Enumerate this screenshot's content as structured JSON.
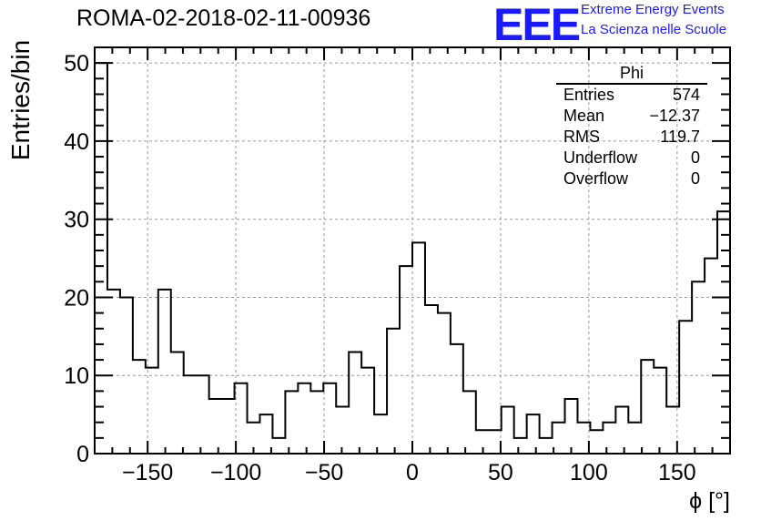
{
  "header": {
    "title": "ROMA-02-2018-02-11-00936",
    "logo_text": "EEE",
    "logo_line1": "Extreme Energy Events",
    "logo_line2": "La Scienza nelle Scuole"
  },
  "stats": {
    "title": "Phi",
    "rows": [
      {
        "label": "Entries",
        "value": "574"
      },
      {
        "label": "Mean",
        "value": "−12.37"
      },
      {
        "label": "RMS",
        "value": "119.7"
      },
      {
        "label": "Underflow",
        "value": "0"
      },
      {
        "label": "Overflow",
        "value": "0"
      }
    ]
  },
  "colors": {
    "logo": "#1a1aff",
    "line": "#000000",
    "grid": "#9a9a9a"
  },
  "chart_data": {
    "type": "bar",
    "style": "step-histogram",
    "xlabel": "ϕ [°]",
    "ylabel": "Entries/bin",
    "xlim": [
      -180,
      180
    ],
    "ylim": [
      0,
      52
    ],
    "grid": true,
    "x_ticks": [
      -150,
      -100,
      -50,
      0,
      50,
      100,
      150
    ],
    "x_tick_labels": [
      "−150",
      "−100",
      "−50",
      "0",
      "50",
      "100",
      "150"
    ],
    "y_ticks": [
      0,
      10,
      20,
      30,
      40,
      50
    ],
    "y_tick_labels": [
      "0",
      "10",
      "20",
      "30",
      "40",
      "50"
    ],
    "bin_edges_start": -180,
    "bin_width": 7.2,
    "values": [
      50,
      21,
      20,
      12,
      11,
      21,
      13,
      10,
      10,
      7,
      7,
      9,
      4,
      5,
      2,
      8,
      9,
      8,
      9,
      6,
      13,
      11,
      5,
      16,
      24,
      27,
      19,
      18,
      14,
      8,
      3,
      3,
      6,
      2,
      5,
      2,
      4,
      7,
      4,
      3,
      4,
      6,
      4,
      12,
      11,
      6,
      17,
      22,
      25,
      31
    ]
  }
}
